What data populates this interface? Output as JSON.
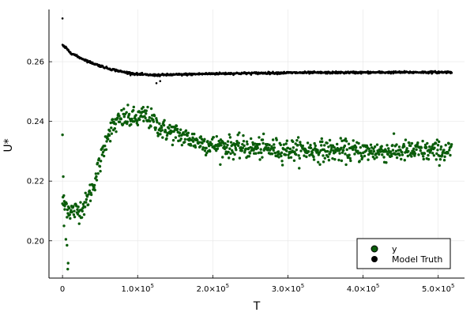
{
  "chart_data": {
    "type": "scatter",
    "title": "",
    "xlabel": "T",
    "ylabel": "U*",
    "xlim": [
      -18000,
      535000
    ],
    "ylim": [
      0.1875,
      0.2775
    ],
    "x_ticks": [
      {
        "value": 0,
        "label": "0"
      },
      {
        "value": 100000,
        "mantissa": "1.0",
        "times": "×",
        "base": "10",
        "exp": "5"
      },
      {
        "value": 200000,
        "mantissa": "2.0",
        "times": "×",
        "base": "10",
        "exp": "5"
      },
      {
        "value": 300000,
        "mantissa": "3.0",
        "times": "×",
        "base": "10",
        "exp": "5"
      },
      {
        "value": 400000,
        "mantissa": "4.0",
        "times": "×",
        "base": "10",
        "exp": "5"
      },
      {
        "value": 500000,
        "mantissa": "5.0",
        "times": "×",
        "base": "10",
        "exp": "5"
      }
    ],
    "y_ticks": [
      {
        "value": 0.2,
        "label": "0.20"
      },
      {
        "value": 0.22,
        "label": "0.22"
      },
      {
        "value": 0.24,
        "label": "0.24"
      },
      {
        "value": 0.26,
        "label": "0.26"
      }
    ],
    "grid": true,
    "legend_position": "bottom-right",
    "series": [
      {
        "name": "y",
        "color": "#0a5c0a",
        "x_range": [
          0,
          518000
        ],
        "profile": [
          [
            0,
            0.213
          ],
          [
            5000,
            0.212
          ],
          [
            10000,
            0.21
          ],
          [
            20000,
            0.21
          ],
          [
            30000,
            0.212
          ],
          [
            40000,
            0.218
          ],
          [
            50000,
            0.226
          ],
          [
            60000,
            0.236
          ],
          [
            70000,
            0.239
          ],
          [
            80000,
            0.241
          ],
          [
            90000,
            0.241
          ],
          [
            100000,
            0.241
          ],
          [
            110000,
            0.242
          ],
          [
            120000,
            0.24
          ],
          [
            135000,
            0.237
          ],
          [
            150000,
            0.236
          ],
          [
            170000,
            0.234
          ],
          [
            200000,
            0.232
          ],
          [
            250000,
            0.231
          ],
          [
            300000,
            0.2305
          ],
          [
            400000,
            0.23
          ],
          [
            518000,
            0.23
          ]
        ],
        "outliers": [
          [
            0,
            0.2355
          ],
          [
            1000,
            0.2215
          ],
          [
            3000,
            0.2105
          ],
          [
            4500,
            0.2005
          ],
          [
            6000,
            0.1985
          ],
          [
            7000,
            0.1905
          ],
          [
            7500,
            0.1925
          ],
          [
            2000,
            0.205
          ]
        ]
      },
      {
        "name": "Model Truth",
        "color": "#000000",
        "x_range": [
          0,
          518000
        ],
        "profile": [
          [
            0,
            0.2655
          ],
          [
            5000,
            0.2645
          ],
          [
            10000,
            0.2632
          ],
          [
            20000,
            0.2617
          ],
          [
            40000,
            0.2595
          ],
          [
            60000,
            0.2578
          ],
          [
            80000,
            0.2566
          ],
          [
            100000,
            0.2558
          ],
          [
            120000,
            0.2555
          ],
          [
            140000,
            0.2556
          ],
          [
            200000,
            0.256
          ],
          [
            300000,
            0.2563
          ],
          [
            400000,
            0.2564
          ],
          [
            518000,
            0.2565
          ]
        ],
        "outliers": [
          [
            0,
            0.2745
          ],
          [
            125000,
            0.2528
          ],
          [
            130000,
            0.2535
          ]
        ]
      }
    ]
  }
}
